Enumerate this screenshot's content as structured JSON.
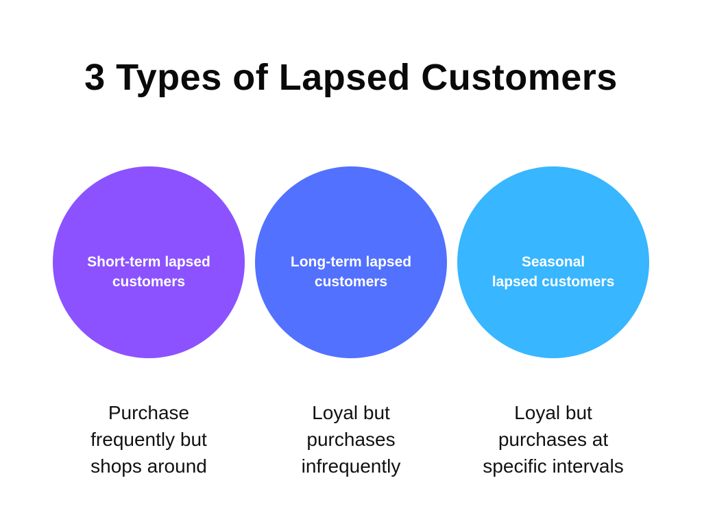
{
  "page": {
    "title": "3 Types of Lapsed Customers",
    "background_color": "#ffffff",
    "title_color": "#0a0a0a",
    "description_text_color": "#111111"
  },
  "types": [
    {
      "circle_label": "Short-term lapsed\ncustomers",
      "circle_color": "#8c52ff",
      "label_color": "#ffffff",
      "description": "Purchase\nfrequently but\nshops around"
    },
    {
      "circle_label": "Long-term lapsed\ncustomers",
      "circle_color": "#5271ff",
      "label_color": "#ffffff",
      "description": "Loyal but\npurchases\ninfrequently"
    },
    {
      "circle_label": "Seasonal\nlapsed customers",
      "circle_color": "#38b6ff",
      "label_color": "#ffffff",
      "description": "Loyal but\npurchases at\nspecific intervals"
    }
  ]
}
